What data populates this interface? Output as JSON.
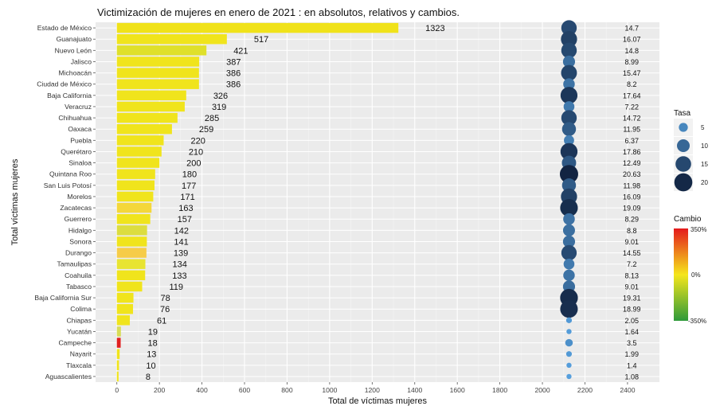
{
  "chart_data": {
    "type": "bar",
    "title": "Victimización de mujeres en enero de 2021 : en absolutos, relativos y cambios.",
    "xlabel": "Total de víctimas mujeres",
    "ylabel": "Total víctimas mujeres",
    "xlim": [
      -100,
      2550
    ],
    "xticks": [
      0,
      200,
      400,
      600,
      800,
      1000,
      1200,
      1400,
      1600,
      1800,
      2000,
      2200,
      2400
    ],
    "rate_x": 2125,
    "rate_label_x": 2420,
    "grid": true,
    "legend_position": "right",
    "categories": [
      "Estado de México",
      "Guanajuato",
      "Nuevo León",
      "Jalisco",
      "Michoacán",
      "Ciudad de México",
      "Baja California",
      "Veracruz",
      "Chihuahua",
      "Oaxaca",
      "Puebla",
      "Querétaro",
      "Sinaloa",
      "Quintana Roo",
      "San Luis Potosí",
      "Morelos",
      "Zacatecas",
      "Guerrero",
      "Hidalgo",
      "Sonora",
      "Durango",
      "Tamaulipas",
      "Coahuila",
      "Tabasco",
      "Baja California Sur",
      "Colima",
      "Chiapas",
      "Yucatán",
      "Campeche",
      "Nayarit",
      "Tlaxcala",
      "Aguascalientes"
    ],
    "values": [
      1323,
      517,
      421,
      387,
      386,
      386,
      326,
      319,
      285,
      259,
      220,
      210,
      200,
      180,
      177,
      171,
      163,
      157,
      142,
      141,
      139,
      134,
      133,
      119,
      78,
      76,
      61,
      19,
      18,
      13,
      10,
      8
    ],
    "value_labels": [
      "1323",
      "517",
      "421",
      "387",
      "386",
      "386",
      "326",
      "319",
      "285",
      "259",
      "220",
      "210",
      "200",
      "180",
      "177",
      "171",
      "163",
      "157",
      "142",
      "141",
      "139",
      "134",
      "133",
      "119",
      "78",
      "76",
      "61",
      "19",
      "18",
      "13",
      "10",
      "8"
    ],
    "rates": [
      14.7,
      16.07,
      14.8,
      8.99,
      15.47,
      8.2,
      17.64,
      7.22,
      14.72,
      11.95,
      6.37,
      17.86,
      12.49,
      20.63,
      11.98,
      16.09,
      19.09,
      8.29,
      8.8,
      9.01,
      14.55,
      7.2,
      8.13,
      9.01,
      19.31,
      18.99,
      2.05,
      1.64,
      3.5,
      1.99,
      1.4,
      1.08
    ],
    "rate_labels": [
      "14.7",
      "16.07",
      "14.8",
      "8.99",
      "15.47",
      "8.2",
      "17.64",
      "7.22",
      "14.72",
      "11.95",
      "6.37",
      "17.86",
      "12.49",
      "20.63",
      "11.98",
      "16.09",
      "19.09",
      "8.29",
      "8.8",
      "9.01",
      "14.55",
      "7.2",
      "8.13",
      "9.01",
      "19.31",
      "18.99",
      "2.05",
      "1.64",
      "3.5",
      "1.99",
      "1.4",
      "1.08"
    ],
    "bar_colors": [
      "#f0e21a",
      "#f0e41c",
      "#dfe02a",
      "#f0e41c",
      "#f0e41c",
      "#f0e41c",
      "#f0e41c",
      "#f0e41c",
      "#f0e41c",
      "#f0e41c",
      "#f0e41c",
      "#f0e41c",
      "#f0e41c",
      "#f0e41c",
      "#f0e41c",
      "#f0e41c",
      "#f4d73a",
      "#f0e41c",
      "#dcdd3f",
      "#f0e41c",
      "#f6cc48",
      "#e8e431",
      "#f0e41c",
      "#f0e41c",
      "#f0e41c",
      "#f0e41c",
      "#f0e41c",
      "#d8dc56",
      "#e02020",
      "#f0e41c",
      "#f0e41c",
      "#f0e41c"
    ],
    "legend_size": {
      "title": "Tasa",
      "entries": [
        {
          "label": "5",
          "value": 5
        },
        {
          "label": "10",
          "value": 10
        },
        {
          "label": "15",
          "value": 15
        },
        {
          "label": "20",
          "value": 20
        }
      ]
    },
    "legend_color": {
      "title": "Cambio",
      "labels": [
        "350%",
        "0%",
        "-350%"
      ],
      "colors": [
        "#e41a1c",
        "#f5e61b",
        "#2e9a3a"
      ]
    }
  }
}
